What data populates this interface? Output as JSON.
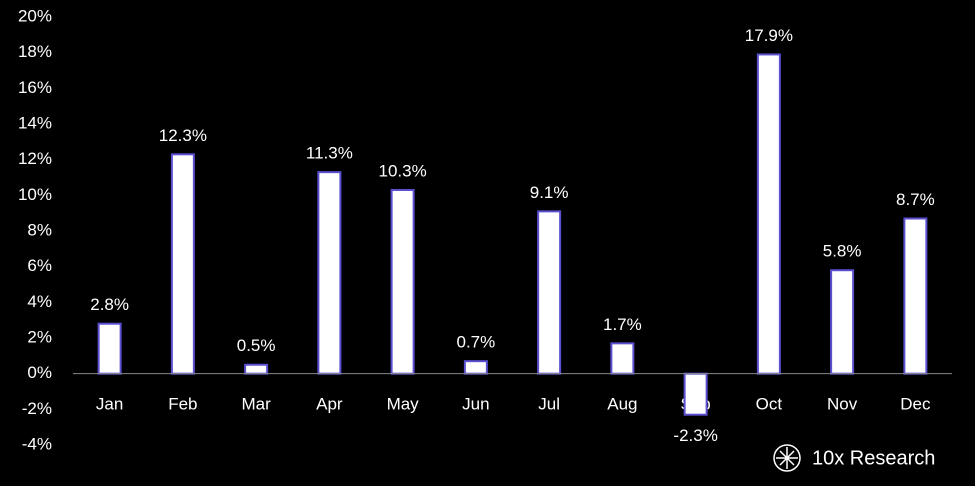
{
  "chart_data": {
    "type": "bar",
    "categories": [
      "Jan",
      "Feb",
      "Mar",
      "Apr",
      "May",
      "Jun",
      "Jul",
      "Aug",
      "Sep",
      "Oct",
      "Nov",
      "Dec"
    ],
    "values": [
      2.8,
      12.3,
      0.5,
      11.3,
      10.3,
      0.7,
      9.1,
      1.7,
      -2.3,
      17.9,
      5.8,
      8.7
    ],
    "value_labels": [
      "2.8%",
      "12.3%",
      "0.5%",
      "11.3%",
      "10.3%",
      "0.7%",
      "9.1%",
      "1.7%",
      "-2.3%",
      "17.9%",
      "5.8%",
      "8.7%"
    ],
    "color": "#ffffff",
    "edge_color": "#5a50d0",
    "ylim": [
      -4,
      20
    ],
    "yticks": [
      {
        "value": -4,
        "label": "-4%"
      },
      {
        "value": -2,
        "label": "-2%"
      },
      {
        "value": 0,
        "label": "0%"
      },
      {
        "value": 2,
        "label": "2%"
      },
      {
        "value": 4,
        "label": "4%"
      },
      {
        "value": 6,
        "label": "6%"
      },
      {
        "value": 8,
        "label": "8%"
      },
      {
        "value": 10,
        "label": "10%"
      },
      {
        "value": 12,
        "label": "12%"
      },
      {
        "value": 14,
        "label": "14%"
      },
      {
        "value": 16,
        "label": "16%"
      },
      {
        "value": 18,
        "label": "18%"
      },
      {
        "value": 20,
        "label": "20%"
      }
    ],
    "grid": false,
    "source": "10x Research"
  }
}
